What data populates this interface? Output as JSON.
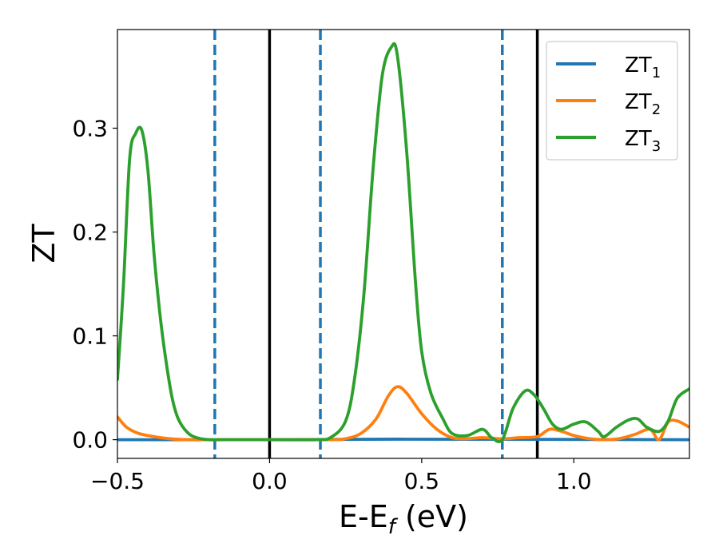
{
  "chart_data": {
    "type": "line",
    "title": "",
    "xlabel": {
      "main": "E-E",
      "sub": "f",
      "tail": " (eV)"
    },
    "ylabel": "ZT",
    "xlim": [
      -0.5,
      1.38
    ],
    "ylim": [
      -0.018,
      0.395
    ],
    "grid": false,
    "legend_position": "top-right",
    "x_ticks": [
      {
        "value": -0.5,
        "label": "−0.5"
      },
      {
        "value": 0.0,
        "label": "0.0"
      },
      {
        "value": 0.5,
        "label": "0.5"
      },
      {
        "value": 1.0,
        "label": "1.0"
      }
    ],
    "y_ticks": [
      {
        "value": 0.0,
        "label": "0.0"
      },
      {
        "value": 0.1,
        "label": "0.1"
      },
      {
        "value": 0.2,
        "label": "0.2"
      },
      {
        "value": 0.3,
        "label": "0.3"
      }
    ],
    "vertical_lines": [
      {
        "x": -0.18,
        "style": "dashed",
        "color": "#1f77b4"
      },
      {
        "x": 0.0,
        "style": "solid",
        "color": "#000000"
      },
      {
        "x": 0.167,
        "style": "dashed",
        "color": "#1f77b4"
      },
      {
        "x": 0.765,
        "style": "dashed",
        "color": "#1f77b4"
      },
      {
        "x": 0.88,
        "style": "solid",
        "color": "#000000"
      }
    ],
    "series": [
      {
        "name": "ZT",
        "subscript": "1",
        "color": "#1f77b4",
        "x": [
          -0.5,
          0.0,
          0.42,
          1.38
        ],
        "y": [
          0.0,
          0.0,
          0.0005,
          0.0
        ]
      },
      {
        "name": "ZT",
        "subscript": "2",
        "color": "#ff7f0e",
        "x": [
          -0.5,
          -0.47,
          -0.43,
          -0.38,
          -0.33,
          -0.27,
          -0.2,
          0.0,
          0.2,
          0.25,
          0.3,
          0.35,
          0.39,
          0.42,
          0.45,
          0.5,
          0.55,
          0.6,
          0.65,
          0.7,
          0.75,
          0.78,
          0.82,
          0.88,
          0.92,
          0.96,
          1.0,
          1.05,
          1.1,
          1.15,
          1.2,
          1.25,
          1.28,
          1.31,
          1.34,
          1.38
        ],
        "y": [
          0.022,
          0.012,
          0.006,
          0.003,
          0.001,
          0.0,
          0.0,
          0.0,
          0.0,
          0.001,
          0.006,
          0.02,
          0.042,
          0.051,
          0.045,
          0.025,
          0.01,
          0.002,
          0.001,
          0.002,
          0.001,
          0.001,
          0.002,
          0.003,
          0.01,
          0.008,
          0.004,
          0.001,
          0.0,
          0.001,
          0.005,
          0.01,
          0.0,
          0.017,
          0.018,
          0.012
        ]
      },
      {
        "name": "ZT",
        "subscript": "3",
        "color": "#2ca02c",
        "x": [
          -0.5,
          -0.48,
          -0.46,
          -0.44,
          -0.42,
          -0.4,
          -0.38,
          -0.36,
          -0.34,
          -0.32,
          -0.3,
          -0.27,
          -0.24,
          -0.2,
          -0.15,
          0.0,
          0.15,
          0.2,
          0.25,
          0.28,
          0.31,
          0.34,
          0.37,
          0.4,
          0.42,
          0.45,
          0.48,
          0.5,
          0.53,
          0.57,
          0.6,
          0.65,
          0.7,
          0.73,
          0.765,
          0.8,
          0.84,
          0.87,
          0.9,
          0.93,
          0.96,
          1.0,
          1.04,
          1.08,
          1.1,
          1.14,
          1.18,
          1.21,
          1.24,
          1.28,
          1.31,
          1.34,
          1.38
        ],
        "y": [
          0.058,
          0.15,
          0.27,
          0.295,
          0.298,
          0.26,
          0.18,
          0.12,
          0.075,
          0.04,
          0.02,
          0.007,
          0.002,
          0.0,
          0.0,
          0.0,
          0.0,
          0.002,
          0.018,
          0.06,
          0.14,
          0.26,
          0.35,
          0.378,
          0.37,
          0.28,
          0.15,
          0.085,
          0.045,
          0.02,
          0.006,
          0.004,
          0.01,
          0.002,
          0.0,
          0.03,
          0.047,
          0.043,
          0.03,
          0.015,
          0.01,
          0.015,
          0.017,
          0.008,
          0.003,
          0.012,
          0.019,
          0.02,
          0.012,
          0.008,
          0.018,
          0.04,
          0.049
        ]
      }
    ]
  }
}
